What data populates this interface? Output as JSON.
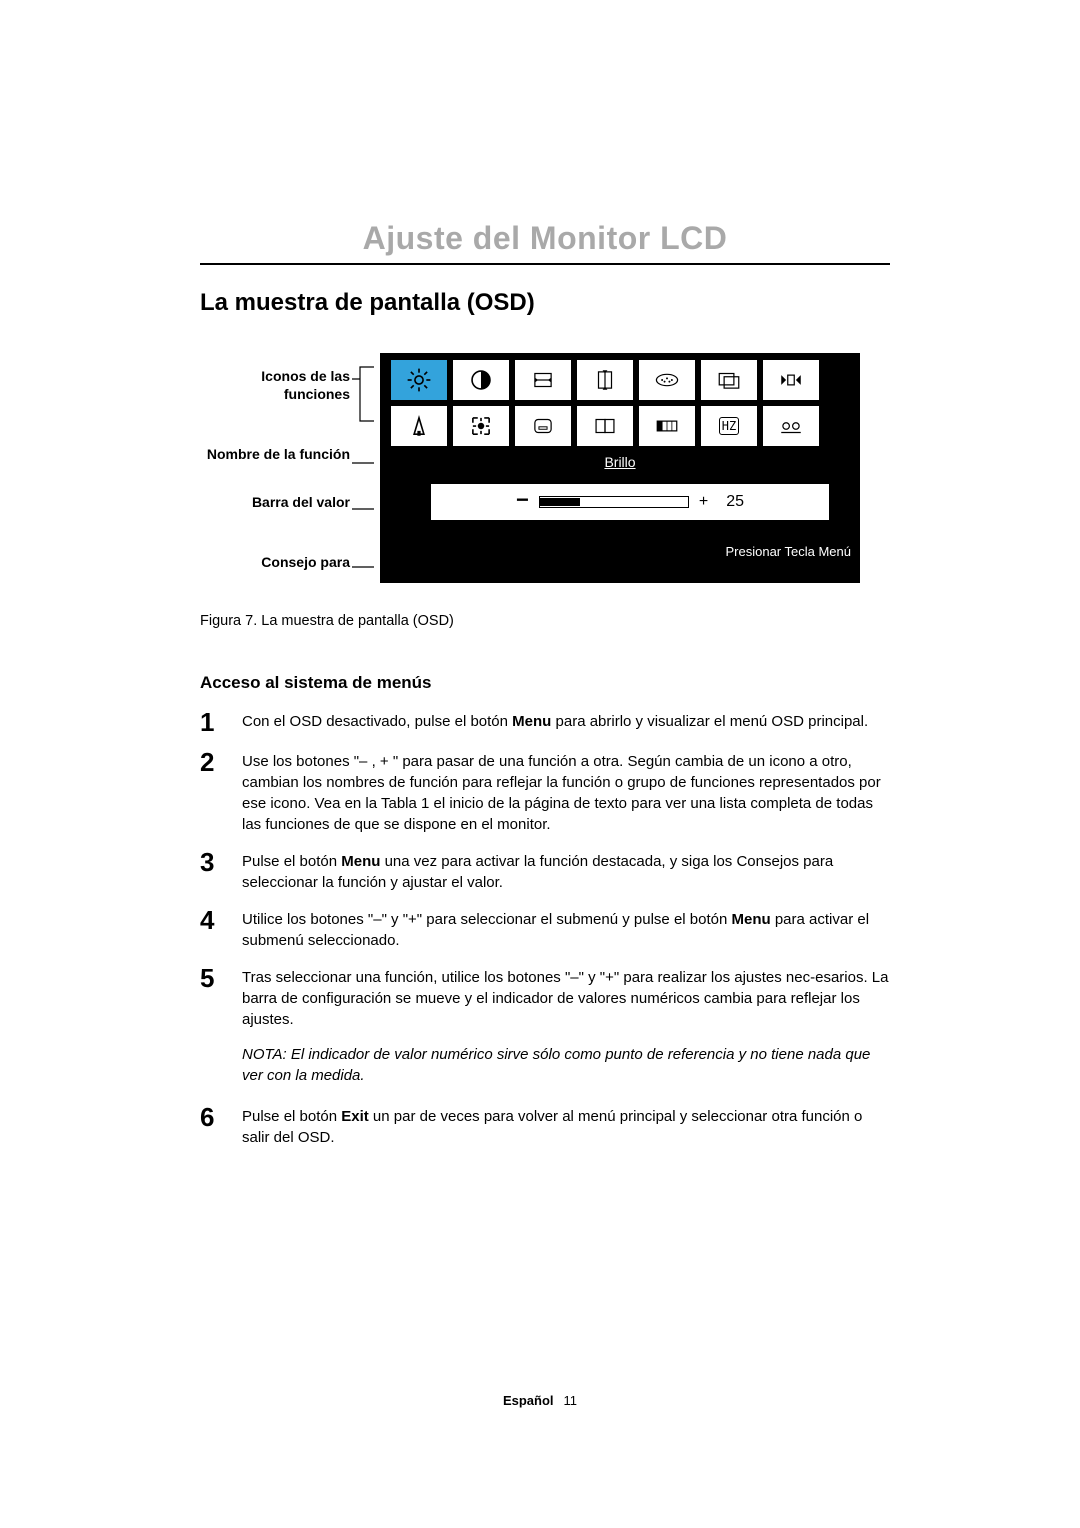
{
  "chapter_title": "Ajuste del Monitor LCD",
  "section_title": "La muestra de pantalla (OSD)",
  "labels": {
    "icons": "Iconos de las funciones",
    "func_name": "Nombre de la función",
    "value_bar": "Barra del valor",
    "tip": "Consejo para"
  },
  "osd": {
    "selected_function": "Brillo",
    "bar": {
      "minus": "−",
      "plus": "+",
      "value": "25",
      "fill_pct": 27
    },
    "tip_text": "Presionar Tecla Menú",
    "colors": {
      "panel_bg": "#000000",
      "cell_bg": "#ffffff",
      "selected_bg": "#33a3dc",
      "text_light": "#ffffff"
    }
  },
  "caption": "Figura 7.  La muestra de pantalla (OSD)",
  "subsection_title": "Acceso al sistema de menús",
  "steps": {
    "s1": {
      "n": "1",
      "pre": "Con el OSD desactivado, pulse el botón ",
      "b": "Menu",
      "post": " para abrirlo y visualizar el menú OSD principal."
    },
    "s2": {
      "n": "2",
      "text": "Use los botones \"– , + \" para pasar de una función a otra. Según cambia de un icono a otro, cambian los nombres de función para reflejar la función o grupo de funciones representados por ese icono. Vea en la Tabla 1 el inicio de la página de texto para ver una lista completa de todas las funciones de que se dispone en el monitor."
    },
    "s3": {
      "n": "3",
      "pre": "Pulse el botón ",
      "b": "Menu",
      "post": " una vez para activar la función destacada, y siga los Consejos para seleccionar la función y ajustar el valor."
    },
    "s4": {
      "n": "4",
      "pre": "Utilice los botones \"–\" y \"+\"  para seleccionar el submenú y pulse el botón ",
      "b": "Menu",
      "post": " para activar el submenú seleccionado."
    },
    "s5": {
      "n": "5",
      "text": "Tras seleccionar una función, utilice los botones \"–\" y \"+\" para realizar los ajustes nec-esarios. La barra de configuración se mueve y el indicador de valores numéricos cambia para reflejar los ajustes."
    },
    "s6": {
      "n": "6",
      "pre": "Pulse el botón  ",
      "b": "Exit",
      "post": " un par de veces para volver al menú principal y seleccionar otra función o salir del OSD."
    }
  },
  "note": "NOTA: El indicador de valor numérico sirve sólo como punto de referencia y no tiene nada que ver con la medida.",
  "footer": {
    "lang": "Español",
    "page": "11"
  }
}
